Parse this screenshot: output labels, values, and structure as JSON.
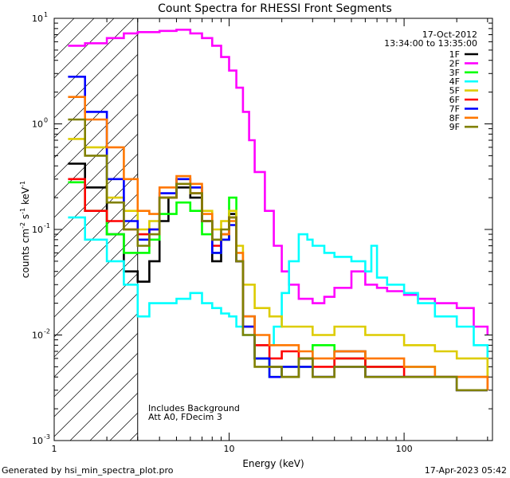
{
  "chart_data": {
    "type": "line",
    "title": "Count Spectra for RHESSI Front Segments",
    "xlabel": "Energy (keV)",
    "ylabel_main": "counts cm",
    "ylabel_exp1": "-2",
    "ylabel_s": " s",
    "ylabel_exp2": "-1",
    "ylabel_kev": " keV",
    "ylabel_exp3": "-1",
    "x_scale": "log",
    "y_scale": "log",
    "xlim": [
      1,
      320
    ],
    "ylim": [
      0.001,
      10
    ],
    "x_ticks": [
      {
        "value": 1,
        "label": "1"
      },
      {
        "value": 10,
        "label": "10"
      },
      {
        "value": 100,
        "label": "100"
      }
    ],
    "y_ticks": [
      {
        "value": 10,
        "label": "10",
        "exp": "1"
      },
      {
        "value": 1,
        "label": "10",
        "exp": "0"
      },
      {
        "value": 0.1,
        "label": "10",
        "exp": "-1"
      },
      {
        "value": 0.01,
        "label": "10",
        "exp": "-2"
      },
      {
        "value": 0.001,
        "label": "10",
        "exp": "-3"
      }
    ],
    "date_label": "17-Oct-2012",
    "time_label": "13:34:00 to 13:35:00",
    "annotation_line1": "Includes Background",
    "annotation_line2": "Att A0, FDecim 3",
    "footer_left": "Generated by hsi_min_spectra_plot.pro",
    "footer_right": "17-Apr-2023 05:42",
    "hatched_region_max_energy": 3,
    "series": [
      {
        "name": "1F",
        "color": "#000000",
        "points": [
          [
            1.2,
            0.42
          ],
          [
            1.5,
            0.25
          ],
          [
            2,
            0.09
          ],
          [
            2.5,
            0.04
          ],
          [
            3,
            0.032
          ],
          [
            3.5,
            0.05
          ],
          [
            4,
            0.12
          ],
          [
            4.5,
            0.2
          ],
          [
            5,
            0.25
          ],
          [
            6,
            0.2
          ],
          [
            7,
            0.12
          ],
          [
            8,
            0.05
          ],
          [
            9,
            0.08
          ],
          [
            10,
            0.14
          ],
          [
            11,
            0.05
          ],
          [
            12,
            0.015
          ],
          [
            14,
            0.006
          ],
          [
            17,
            0.005
          ],
          [
            20,
            0.004
          ],
          [
            25,
            0.006
          ],
          [
            30,
            0.004
          ],
          [
            40,
            0.007
          ],
          [
            60,
            0.004
          ],
          [
            100,
            0.004
          ],
          [
            150,
            0.004
          ],
          [
            200,
            0.003
          ],
          [
            300,
            0.003
          ]
        ]
      },
      {
        "name": "2F",
        "color": "#ff00ff",
        "points": [
          [
            1.2,
            5.5
          ],
          [
            1.5,
            5.8
          ],
          [
            2,
            6.5
          ],
          [
            2.5,
            7.2
          ],
          [
            3,
            7.4
          ],
          [
            4,
            7.6
          ],
          [
            5,
            7.8
          ],
          [
            6,
            7.2
          ],
          [
            7,
            6.5
          ],
          [
            8,
            5.5
          ],
          [
            9,
            4.3
          ],
          [
            10,
            3.2
          ],
          [
            11,
            2.2
          ],
          [
            12,
            1.3
          ],
          [
            13,
            0.7
          ],
          [
            14,
            0.35
          ],
          [
            16,
            0.15
          ],
          [
            18,
            0.07
          ],
          [
            20,
            0.04
          ],
          [
            22,
            0.03
          ],
          [
            25,
            0.022
          ],
          [
            30,
            0.02
          ],
          [
            35,
            0.023
          ],
          [
            40,
            0.028
          ],
          [
            50,
            0.04
          ],
          [
            60,
            0.03
          ],
          [
            70,
            0.028
          ],
          [
            80,
            0.026
          ],
          [
            100,
            0.024
          ],
          [
            120,
            0.022
          ],
          [
            150,
            0.02
          ],
          [
            200,
            0.018
          ],
          [
            250,
            0.012
          ],
          [
            300,
            0.01
          ]
        ]
      },
      {
        "name": "3F",
        "color": "#00ff00",
        "points": [
          [
            1.2,
            0.28
          ],
          [
            1.5,
            0.15
          ],
          [
            2,
            0.09
          ],
          [
            2.5,
            0.06
          ],
          [
            3,
            0.06
          ],
          [
            3.5,
            0.08
          ],
          [
            4,
            0.14
          ],
          [
            5,
            0.18
          ],
          [
            6,
            0.15
          ],
          [
            7,
            0.09
          ],
          [
            8,
            0.06
          ],
          [
            9,
            0.08
          ],
          [
            10,
            0.2
          ],
          [
            11,
            0.05
          ],
          [
            12,
            0.012
          ],
          [
            14,
            0.006
          ],
          [
            17,
            0.004
          ],
          [
            20,
            0.005
          ],
          [
            30,
            0.008
          ],
          [
            40,
            0.006
          ],
          [
            60,
            0.005
          ],
          [
            100,
            0.005
          ],
          [
            150,
            0.004
          ],
          [
            200,
            0.004
          ],
          [
            300,
            0.005
          ]
        ]
      },
      {
        "name": "4F",
        "color": "#00ffff",
        "points": [
          [
            1.2,
            0.13
          ],
          [
            1.5,
            0.08
          ],
          [
            2,
            0.05
          ],
          [
            2.5,
            0.03
          ],
          [
            3,
            0.015
          ],
          [
            3.5,
            0.02
          ],
          [
            4,
            0.02
          ],
          [
            5,
            0.022
          ],
          [
            6,
            0.025
          ],
          [
            7,
            0.02
          ],
          [
            8,
            0.018
          ],
          [
            9,
            0.016
          ],
          [
            10,
            0.015
          ],
          [
            11,
            0.012
          ],
          [
            12,
            0.01
          ],
          [
            14,
            0.008
          ],
          [
            16,
            0.008
          ],
          [
            18,
            0.012
          ],
          [
            20,
            0.025
          ],
          [
            22,
            0.05
          ],
          [
            25,
            0.09
          ],
          [
            28,
            0.08
          ],
          [
            30,
            0.07
          ],
          [
            35,
            0.06
          ],
          [
            40,
            0.055
          ],
          [
            50,
            0.05
          ],
          [
            60,
            0.04
          ],
          [
            65,
            0.07
          ],
          [
            70,
            0.035
          ],
          [
            80,
            0.03
          ],
          [
            100,
            0.025
          ],
          [
            120,
            0.02
          ],
          [
            150,
            0.015
          ],
          [
            200,
            0.012
          ],
          [
            250,
            0.008
          ],
          [
            300,
            0.006
          ]
        ]
      },
      {
        "name": "5F",
        "color": "#ddcc00",
        "points": [
          [
            1.2,
            0.72
          ],
          [
            1.5,
            0.6
          ],
          [
            2,
            0.2
          ],
          [
            2.5,
            0.15
          ],
          [
            3,
            0.1
          ],
          [
            3.5,
            0.12
          ],
          [
            4,
            0.2
          ],
          [
            5,
            0.3
          ],
          [
            6,
            0.25
          ],
          [
            7,
            0.15
          ],
          [
            8,
            0.1
          ],
          [
            9,
            0.12
          ],
          [
            10,
            0.15
          ],
          [
            11,
            0.07
          ],
          [
            12,
            0.03
          ],
          [
            14,
            0.018
          ],
          [
            17,
            0.015
          ],
          [
            20,
            0.012
          ],
          [
            25,
            0.012
          ],
          [
            30,
            0.01
          ],
          [
            40,
            0.012
          ],
          [
            60,
            0.01
          ],
          [
            100,
            0.008
          ],
          [
            150,
            0.007
          ],
          [
            200,
            0.006
          ],
          [
            300,
            0.004
          ]
        ]
      },
      {
        "name": "6F",
        "color": "#ff0000",
        "points": [
          [
            1.2,
            0.3
          ],
          [
            1.5,
            0.15
          ],
          [
            2,
            0.12
          ],
          [
            2.5,
            0.1
          ],
          [
            3,
            0.09
          ],
          [
            3.5,
            0.1
          ],
          [
            4,
            0.2
          ],
          [
            5,
            0.27
          ],
          [
            6,
            0.22
          ],
          [
            7,
            0.12
          ],
          [
            8,
            0.07
          ],
          [
            9,
            0.09
          ],
          [
            10,
            0.13
          ],
          [
            11,
            0.05
          ],
          [
            12,
            0.012
          ],
          [
            14,
            0.008
          ],
          [
            17,
            0.006
          ],
          [
            20,
            0.007
          ],
          [
            25,
            0.006
          ],
          [
            30,
            0.005
          ],
          [
            40,
            0.006
          ],
          [
            60,
            0.005
          ],
          [
            100,
            0.004
          ],
          [
            150,
            0.004
          ],
          [
            200,
            0.004
          ],
          [
            300,
            0.003
          ]
        ]
      },
      {
        "name": "7F",
        "color": "#0000ff",
        "points": [
          [
            1.2,
            2.8
          ],
          [
            1.5,
            1.3
          ],
          [
            2,
            0.3
          ],
          [
            2.5,
            0.12
          ],
          [
            3,
            0.08
          ],
          [
            3.5,
            0.1
          ],
          [
            4,
            0.22
          ],
          [
            5,
            0.3
          ],
          [
            6,
            0.25
          ],
          [
            7,
            0.12
          ],
          [
            8,
            0.06
          ],
          [
            9,
            0.08
          ],
          [
            10,
            0.11
          ],
          [
            11,
            0.05
          ],
          [
            12,
            0.012
          ],
          [
            14,
            0.006
          ],
          [
            17,
            0.004
          ],
          [
            20,
            0.005
          ],
          [
            25,
            0.005
          ],
          [
            30,
            0.004
          ],
          [
            40,
            0.005
          ],
          [
            60,
            0.004
          ],
          [
            100,
            0.004
          ],
          [
            150,
            0.004
          ],
          [
            200,
            0.003
          ],
          [
            300,
            0.003
          ]
        ]
      },
      {
        "name": "8F",
        "color": "#ff7700",
        "points": [
          [
            1.2,
            1.8
          ],
          [
            1.5,
            1.1
          ],
          [
            2,
            0.6
          ],
          [
            2.5,
            0.3
          ],
          [
            3,
            0.15
          ],
          [
            3.5,
            0.14
          ],
          [
            4,
            0.25
          ],
          [
            5,
            0.32
          ],
          [
            6,
            0.27
          ],
          [
            7,
            0.14
          ],
          [
            8,
            0.08
          ],
          [
            9,
            0.09
          ],
          [
            10,
            0.12
          ],
          [
            11,
            0.06
          ],
          [
            12,
            0.015
          ],
          [
            14,
            0.01
          ],
          [
            17,
            0.008
          ],
          [
            20,
            0.008
          ],
          [
            25,
            0.007
          ],
          [
            30,
            0.006
          ],
          [
            40,
            0.007
          ],
          [
            60,
            0.006
          ],
          [
            100,
            0.005
          ],
          [
            150,
            0.004
          ],
          [
            200,
            0.004
          ],
          [
            300,
            0.003
          ]
        ]
      },
      {
        "name": "9F",
        "color": "#808000",
        "points": [
          [
            1.2,
            1.1
          ],
          [
            1.5,
            0.5
          ],
          [
            2,
            0.18
          ],
          [
            2.5,
            0.1
          ],
          [
            3,
            0.07
          ],
          [
            3.5,
            0.09
          ],
          [
            4,
            0.2
          ],
          [
            5,
            0.27
          ],
          [
            6,
            0.22
          ],
          [
            7,
            0.12
          ],
          [
            8,
            0.08
          ],
          [
            9,
            0.1
          ],
          [
            10,
            0.13
          ],
          [
            11,
            0.05
          ],
          [
            12,
            0.01
          ],
          [
            14,
            0.005
          ],
          [
            17,
            0.005
          ],
          [
            20,
            0.004
          ],
          [
            25,
            0.006
          ],
          [
            30,
            0.004
          ],
          [
            40,
            0.005
          ],
          [
            60,
            0.004
          ],
          [
            100,
            0.004
          ],
          [
            150,
            0.004
          ],
          [
            200,
            0.003
          ],
          [
            300,
            0.003
          ]
        ]
      }
    ]
  }
}
